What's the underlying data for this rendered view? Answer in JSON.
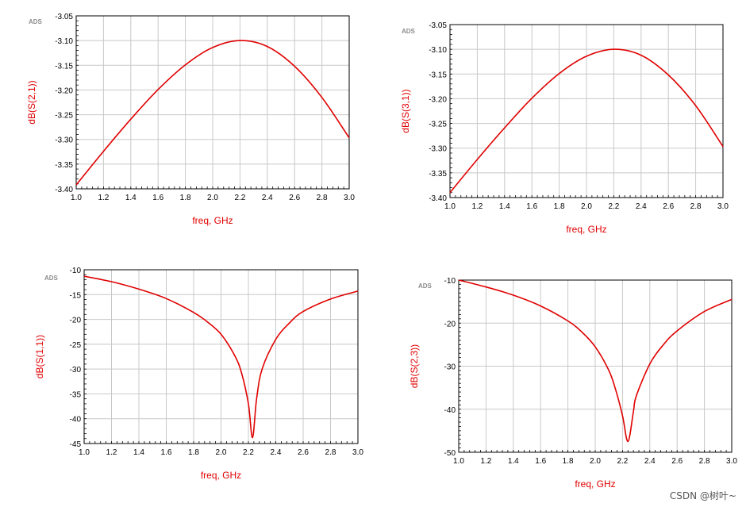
{
  "colors": {
    "curve": "#e00000",
    "axis_label": "#e00000",
    "grid": "#c8c8c8",
    "frame": "#000000",
    "ads": "#8c8c8c"
  },
  "watermark": "CSDN @树叶~",
  "chart_data": [
    {
      "type": "line",
      "id": "s21",
      "tool_label": "ADS",
      "xlabel": "freq, GHz",
      "ylabel": "dB(S(2,1))",
      "xlim": [
        1.0,
        3.0
      ],
      "ylim": [
        -3.4,
        -3.05
      ],
      "xticks": [
        "1.0",
        "1.2",
        "1.4",
        "1.6",
        "1.8",
        "2.0",
        "2.2",
        "2.4",
        "2.6",
        "2.8",
        "3.0"
      ],
      "yticks": [
        "-3.05",
        "-3.10",
        "-3.15",
        "-3.20",
        "-3.25",
        "-3.30",
        "-3.35",
        "-3.40"
      ],
      "x": [
        1.0,
        1.2,
        1.4,
        1.6,
        1.8,
        2.0,
        2.2,
        2.4,
        2.6,
        2.8,
        3.0
      ],
      "y": [
        -3.392,
        -3.324,
        -3.259,
        -3.199,
        -3.149,
        -3.114,
        -3.1,
        -3.112,
        -3.152,
        -3.215,
        -3.297
      ]
    },
    {
      "type": "line",
      "id": "s31",
      "tool_label": "ADS",
      "xlabel": "freq, GHz",
      "ylabel": "dB(S(3,1))",
      "xlim": [
        1.0,
        3.0
      ],
      "ylim": [
        -3.4,
        -3.05
      ],
      "xticks": [
        "1.0",
        "1.2",
        "1.4",
        "1.6",
        "1.8",
        "2.0",
        "2.2",
        "2.4",
        "2.6",
        "2.8",
        "3.0"
      ],
      "yticks": [
        "-3.05",
        "-3.10",
        "-3.15",
        "-3.20",
        "-3.25",
        "-3.30",
        "-3.35",
        "-3.40"
      ],
      "x": [
        1.0,
        1.2,
        1.4,
        1.6,
        1.8,
        2.0,
        2.2,
        2.4,
        2.6,
        2.8,
        3.0
      ],
      "y": [
        -3.39,
        -3.323,
        -3.259,
        -3.199,
        -3.149,
        -3.114,
        -3.1,
        -3.112,
        -3.152,
        -3.214,
        -3.297
      ]
    },
    {
      "type": "line",
      "id": "s11",
      "tool_label": "ADS",
      "xlabel": "freq, GHz",
      "ylabel": "dB(S(1,1))",
      "xlim": [
        1.0,
        3.0
      ],
      "ylim": [
        -45,
        -10
      ],
      "xticks": [
        "1.0",
        "1.2",
        "1.4",
        "1.6",
        "1.8",
        "2.0",
        "2.2",
        "2.4",
        "2.6",
        "2.8",
        "3.0"
      ],
      "yticks": [
        "-10",
        "-15",
        "-20",
        "-25",
        "-30",
        "-35",
        "-40",
        "-45"
      ],
      "x": [
        1.0,
        1.2,
        1.4,
        1.6,
        1.8,
        1.9,
        2.0,
        2.1,
        2.15,
        2.2,
        2.23,
        2.26,
        2.3,
        2.4,
        2.5,
        2.6,
        2.8,
        3.0
      ],
      "y": [
        -11.3,
        -12.4,
        -13.9,
        -15.8,
        -18.6,
        -20.5,
        -23.0,
        -27.3,
        -30.8,
        -37.0,
        -43.8,
        -36.0,
        -30.0,
        -24.0,
        -20.7,
        -18.4,
        -15.9,
        -14.3
      ]
    },
    {
      "type": "line",
      "id": "s23",
      "tool_label": "ADS",
      "xlabel": "freq, GHz",
      "ylabel": "dB(S(2,3))",
      "xlim": [
        1.0,
        3.0
      ],
      "ylim": [
        -50,
        -10
      ],
      "xticks": [
        "1.0",
        "1.2",
        "1.4",
        "1.6",
        "1.8",
        "2.0",
        "2.2",
        "2.4",
        "2.6",
        "2.8",
        "3.0"
      ],
      "yticks": [
        "-10",
        "-20",
        "-30",
        "-40",
        "-50"
      ],
      "x": [
        1.0,
        1.2,
        1.4,
        1.6,
        1.8,
        1.9,
        2.0,
        2.1,
        2.15,
        2.2,
        2.24,
        2.28,
        2.3,
        2.4,
        2.5,
        2.6,
        2.8,
        3.0
      ],
      "y": [
        -10.0,
        -11.6,
        -13.5,
        -16.0,
        -19.5,
        -22.0,
        -25.5,
        -31.0,
        -35.5,
        -41.5,
        -47.5,
        -40.5,
        -37.0,
        -29.5,
        -25.0,
        -21.8,
        -17.3,
        -14.5
      ]
    }
  ]
}
